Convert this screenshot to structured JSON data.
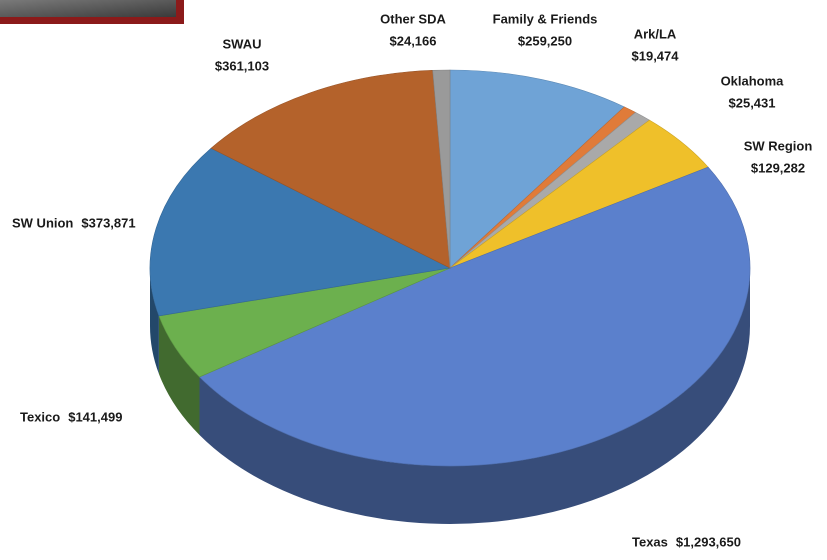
{
  "chart_data": {
    "type": "pie",
    "categories": [
      "Family & Friends",
      "Ark/LA",
      "Oklahoma",
      "SW Region",
      "Texas",
      "Texico",
      "SW Union",
      "SWAU",
      "Other SDA"
    ],
    "values": [
      259250,
      19474,
      25431,
      129282,
      1293650,
      141499,
      373871,
      361103,
      24166
    ],
    "value_labels": [
      "$259,250",
      "$19,474",
      "$25,431",
      "$129,282",
      "$1,293,650",
      "$141,499",
      "$373,871",
      "$361,103",
      "$24,166"
    ],
    "colors": [
      "#6fa3d6",
      "#e07b39",
      "#a9a9a9",
      "#efc02a",
      "#5b80cc",
      "#6cb04e",
      "#3b78b0",
      "#b4622b",
      "#9a9a9a"
    ]
  }
}
